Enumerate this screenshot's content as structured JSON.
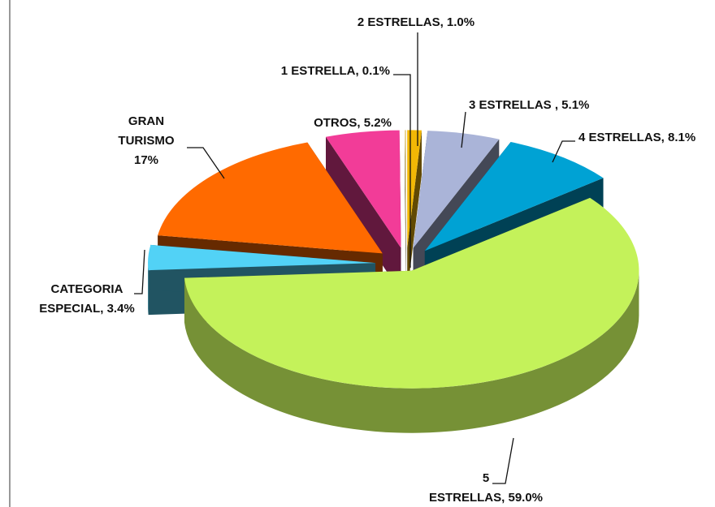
{
  "chart_data": {
    "type": "pie3d",
    "values": [
      1.0,
      5.1,
      8.1,
      59.0,
      3.4,
      17,
      5.2,
      0.1
    ],
    "value_labels": [
      [
        "2 ESTRELLAS, 1.0%"
      ],
      [
        "3 ESTRELLAS , 5.1%"
      ],
      [
        "4 ESTRELLAS, 8.1%"
      ],
      [
        "5",
        "ESTRELLAS, 59.0%"
      ],
      [
        "CATEGORIA",
        "ESPECIAL, 3.4%"
      ],
      [
        "GRAN",
        "TURISMO",
        "17%"
      ],
      [
        "OTROS, 5.2%"
      ],
      [
        "1 ESTRELLA, 0.1%"
      ]
    ],
    "colors": [
      "#f2b705",
      "#aab4d8",
      "#00a2d4",
      "#c4f25a",
      "#52d2f6",
      "#ff6a00",
      "#f23c98",
      "#e6cf86"
    ]
  }
}
